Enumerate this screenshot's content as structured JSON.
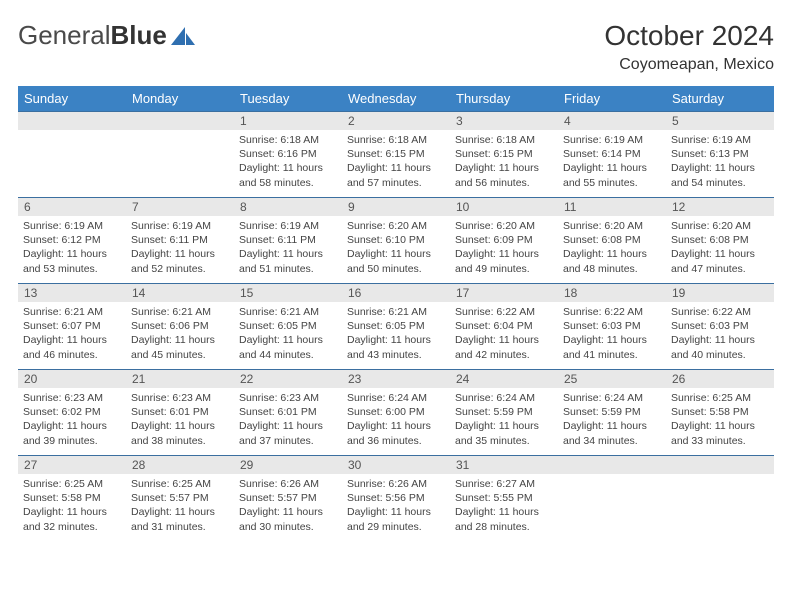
{
  "logo": {
    "word1": "General",
    "word2": "Blue"
  },
  "title": "October 2024",
  "location": "Coyomeapan, Mexico",
  "colors": {
    "header_bg": "#3b82c4",
    "header_text": "#ffffff",
    "row_border": "#3b6fa0",
    "daynum_bg": "#e8e8e8",
    "body_text": "#444444",
    "logo_blue": "#2f6fb0"
  },
  "weekdays": [
    "Sunday",
    "Monday",
    "Tuesday",
    "Wednesday",
    "Thursday",
    "Friday",
    "Saturday"
  ],
  "weeks": [
    [
      {
        "n": "",
        "sr": "",
        "ss": "",
        "dl": ""
      },
      {
        "n": "",
        "sr": "",
        "ss": "",
        "dl": ""
      },
      {
        "n": "1",
        "sr": "6:18 AM",
        "ss": "6:16 PM",
        "dl": "11 hours and 58 minutes."
      },
      {
        "n": "2",
        "sr": "6:18 AM",
        "ss": "6:15 PM",
        "dl": "11 hours and 57 minutes."
      },
      {
        "n": "3",
        "sr": "6:18 AM",
        "ss": "6:15 PM",
        "dl": "11 hours and 56 minutes."
      },
      {
        "n": "4",
        "sr": "6:19 AM",
        "ss": "6:14 PM",
        "dl": "11 hours and 55 minutes."
      },
      {
        "n": "5",
        "sr": "6:19 AM",
        "ss": "6:13 PM",
        "dl": "11 hours and 54 minutes."
      }
    ],
    [
      {
        "n": "6",
        "sr": "6:19 AM",
        "ss": "6:12 PM",
        "dl": "11 hours and 53 minutes."
      },
      {
        "n": "7",
        "sr": "6:19 AM",
        "ss": "6:11 PM",
        "dl": "11 hours and 52 minutes."
      },
      {
        "n": "8",
        "sr": "6:19 AM",
        "ss": "6:11 PM",
        "dl": "11 hours and 51 minutes."
      },
      {
        "n": "9",
        "sr": "6:20 AM",
        "ss": "6:10 PM",
        "dl": "11 hours and 50 minutes."
      },
      {
        "n": "10",
        "sr": "6:20 AM",
        "ss": "6:09 PM",
        "dl": "11 hours and 49 minutes."
      },
      {
        "n": "11",
        "sr": "6:20 AM",
        "ss": "6:08 PM",
        "dl": "11 hours and 48 minutes."
      },
      {
        "n": "12",
        "sr": "6:20 AM",
        "ss": "6:08 PM",
        "dl": "11 hours and 47 minutes."
      }
    ],
    [
      {
        "n": "13",
        "sr": "6:21 AM",
        "ss": "6:07 PM",
        "dl": "11 hours and 46 minutes."
      },
      {
        "n": "14",
        "sr": "6:21 AM",
        "ss": "6:06 PM",
        "dl": "11 hours and 45 minutes."
      },
      {
        "n": "15",
        "sr": "6:21 AM",
        "ss": "6:05 PM",
        "dl": "11 hours and 44 minutes."
      },
      {
        "n": "16",
        "sr": "6:21 AM",
        "ss": "6:05 PM",
        "dl": "11 hours and 43 minutes."
      },
      {
        "n": "17",
        "sr": "6:22 AM",
        "ss": "6:04 PM",
        "dl": "11 hours and 42 minutes."
      },
      {
        "n": "18",
        "sr": "6:22 AM",
        "ss": "6:03 PM",
        "dl": "11 hours and 41 minutes."
      },
      {
        "n": "19",
        "sr": "6:22 AM",
        "ss": "6:03 PM",
        "dl": "11 hours and 40 minutes."
      }
    ],
    [
      {
        "n": "20",
        "sr": "6:23 AM",
        "ss": "6:02 PM",
        "dl": "11 hours and 39 minutes."
      },
      {
        "n": "21",
        "sr": "6:23 AM",
        "ss": "6:01 PM",
        "dl": "11 hours and 38 minutes."
      },
      {
        "n": "22",
        "sr": "6:23 AM",
        "ss": "6:01 PM",
        "dl": "11 hours and 37 minutes."
      },
      {
        "n": "23",
        "sr": "6:24 AM",
        "ss": "6:00 PM",
        "dl": "11 hours and 36 minutes."
      },
      {
        "n": "24",
        "sr": "6:24 AM",
        "ss": "5:59 PM",
        "dl": "11 hours and 35 minutes."
      },
      {
        "n": "25",
        "sr": "6:24 AM",
        "ss": "5:59 PM",
        "dl": "11 hours and 34 minutes."
      },
      {
        "n": "26",
        "sr": "6:25 AM",
        "ss": "5:58 PM",
        "dl": "11 hours and 33 minutes."
      }
    ],
    [
      {
        "n": "27",
        "sr": "6:25 AM",
        "ss": "5:58 PM",
        "dl": "11 hours and 32 minutes."
      },
      {
        "n": "28",
        "sr": "6:25 AM",
        "ss": "5:57 PM",
        "dl": "11 hours and 31 minutes."
      },
      {
        "n": "29",
        "sr": "6:26 AM",
        "ss": "5:57 PM",
        "dl": "11 hours and 30 minutes."
      },
      {
        "n": "30",
        "sr": "6:26 AM",
        "ss": "5:56 PM",
        "dl": "11 hours and 29 minutes."
      },
      {
        "n": "31",
        "sr": "6:27 AM",
        "ss": "5:55 PM",
        "dl": "11 hours and 28 minutes."
      },
      {
        "n": "",
        "sr": "",
        "ss": "",
        "dl": ""
      },
      {
        "n": "",
        "sr": "",
        "ss": "",
        "dl": ""
      }
    ]
  ],
  "labels": {
    "sunrise": "Sunrise:",
    "sunset": "Sunset:",
    "daylight": "Daylight:"
  }
}
